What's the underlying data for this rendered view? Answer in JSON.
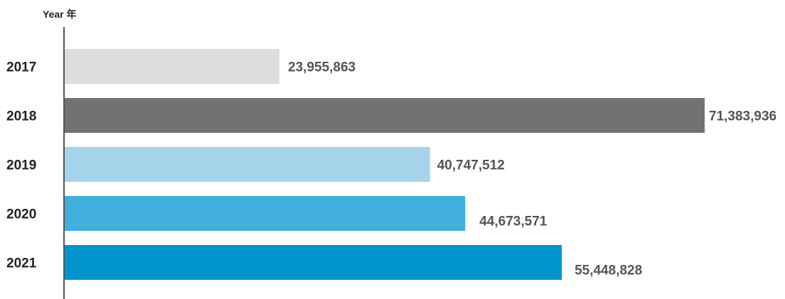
{
  "chart_data": {
    "type": "bar",
    "orientation": "horizontal",
    "ylabel": "Year 年",
    "xlabel": "",
    "xlim": [
      0,
      71383936
    ],
    "grid": false,
    "legend": "none",
    "categories": [
      "2017",
      "2018",
      "2019",
      "2020",
      "2021"
    ],
    "values": [
      23955863,
      71383936,
      40747512,
      44673571,
      55448828
    ],
    "value_labels": [
      "23,955,863",
      "71,383,936",
      "40,747,512",
      "44,673,571",
      "55,448,828"
    ],
    "colors": [
      "#dcdddc",
      "#727272",
      "#a5d3ea",
      "#40afdc",
      "#0095cc"
    ],
    "axis_color": "#555555"
  }
}
